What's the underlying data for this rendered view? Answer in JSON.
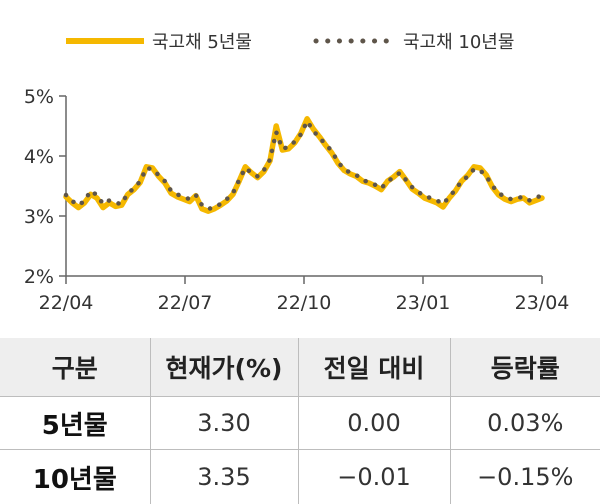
{
  "chart_data": {
    "type": "line",
    "title": "",
    "xlabel": "",
    "ylabel": "",
    "ylim": [
      2,
      5
    ],
    "y_ticks": [
      "2%",
      "3%",
      "4%",
      "5%"
    ],
    "y_tick_values": [
      2,
      3,
      4,
      5
    ],
    "x_ticks": [
      "22/04",
      "22/07",
      "22/10",
      "23/01",
      "23/04"
    ],
    "x_tick_index": [
      0,
      13,
      26,
      39,
      52
    ],
    "legend_position": "top",
    "grid": false,
    "series": [
      {
        "name": "국고채 5년물",
        "style": "solid",
        "color": "#F5B800",
        "values": [
          3.32,
          3.22,
          3.14,
          3.22,
          3.36,
          3.3,
          3.14,
          3.22,
          3.16,
          3.18,
          3.36,
          3.44,
          3.56,
          3.82,
          3.8,
          3.66,
          3.55,
          3.38,
          3.32,
          3.28,
          3.24,
          3.34,
          3.12,
          3.08,
          3.12,
          3.18,
          3.25,
          3.36,
          3.58,
          3.82,
          3.72,
          3.64,
          3.74,
          3.92,
          4.5,
          4.1,
          4.12,
          4.22,
          4.38,
          4.62,
          4.45,
          4.32,
          4.18,
          4.05,
          3.88,
          3.76,
          3.7,
          3.66,
          3.58,
          3.55,
          3.5,
          3.44,
          3.58,
          3.65,
          3.74,
          3.6,
          3.45,
          3.38,
          3.3,
          3.26,
          3.22,
          3.15,
          3.3,
          3.42,
          3.58,
          3.68,
          3.82,
          3.8,
          3.68,
          3.48,
          3.35,
          3.28,
          3.24,
          3.28,
          3.3,
          3.22,
          3.26,
          3.3
        ]
      },
      {
        "name": "국고채 10년물",
        "style": "dotted",
        "color": "#5E554A",
        "values": [
          3.35,
          3.25,
          3.18,
          3.25,
          3.42,
          3.35,
          3.2,
          3.26,
          3.22,
          3.2,
          3.38,
          3.46,
          3.58,
          3.8,
          3.78,
          3.68,
          3.58,
          3.42,
          3.36,
          3.32,
          3.28,
          3.35,
          3.18,
          3.12,
          3.14,
          3.2,
          3.28,
          3.38,
          3.6,
          3.8,
          3.72,
          3.66,
          3.76,
          3.94,
          4.4,
          4.12,
          4.15,
          4.24,
          4.36,
          4.58,
          4.42,
          4.3,
          4.2,
          4.08,
          3.9,
          3.78,
          3.72,
          3.68,
          3.6,
          3.56,
          3.52,
          3.46,
          3.58,
          3.64,
          3.72,
          3.6,
          3.48,
          3.4,
          3.33,
          3.3,
          3.26,
          3.2,
          3.32,
          3.44,
          3.58,
          3.66,
          3.78,
          3.76,
          3.66,
          3.5,
          3.38,
          3.32,
          3.28,
          3.3,
          3.32,
          3.26,
          3.3,
          3.35
        ]
      }
    ]
  },
  "table": {
    "headers": [
      "구분",
      "현재가(%)",
      "전일 대비",
      "등락률"
    ],
    "rows": [
      [
        "5년물",
        "3.30",
        "0.00",
        "0.03%"
      ],
      [
        "10년물",
        "3.35",
        "−0.01",
        "−0.15%"
      ]
    ]
  }
}
